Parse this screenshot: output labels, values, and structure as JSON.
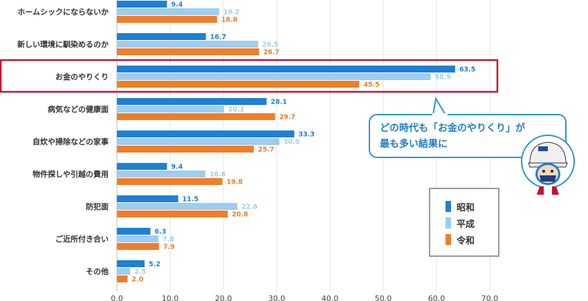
{
  "chart_data": {
    "type": "bar",
    "orientation": "horizontal",
    "categories": [
      "ホームシックにならないか",
      "新しい環境に馴染めるのか",
      "お金のやりくり",
      "病気などの健康面",
      "自炊や掃除などの家事",
      "物件探しや引越の費用",
      "防犯面",
      "ご近所付き合い",
      "その他"
    ],
    "series": [
      {
        "name": "昭和",
        "color": "#1e7fd4",
        "values": [
          9.4,
          16.7,
          63.5,
          28.1,
          33.3,
          9.4,
          11.5,
          6.3,
          5.2
        ],
        "labels": [
          "9.4",
          "16.7",
          "63.5",
          "28.1",
          "33.3",
          "9.4",
          "11.5",
          "6.3",
          "5.2"
        ]
      },
      {
        "name": "平成",
        "color": "#9dcdf0",
        "values": [
          19.2,
          26.5,
          58.9,
          20.1,
          30.5,
          16.6,
          22.6,
          7.8,
          2.5
        ],
        "labels": [
          "19.2",
          "26.5",
          "58.9",
          "20.1",
          "30.5",
          "16.6",
          "22.6",
          "7.8",
          "2.5"
        ]
      },
      {
        "name": "令和",
        "color": "#ef7e2a",
        "values": [
          18.8,
          26.7,
          45.5,
          29.7,
          25.7,
          19.8,
          20.8,
          7.9,
          2.0
        ],
        "labels": [
          "18.8",
          "26.7",
          "45.5",
          "29.7",
          "25.7",
          "19.8",
          "20.8",
          "7.9",
          "2.0"
        ]
      }
    ],
    "xlim": [
      0,
      70
    ],
    "xticks": [
      "0.0",
      "10.0",
      "20.0",
      "30.0",
      "40.0",
      "50.0",
      "60.0",
      "70.0"
    ],
    "grid": true,
    "highlight_category": "お金のやりくり",
    "highlight_color": "#c8102e",
    "legend_placement": "bottom-right"
  },
  "callout": {
    "line1": "どの時代も「お金のやりくり」が",
    "line2": "最も多い結果に",
    "color": "#2a93d5"
  },
  "legend": {
    "items": [
      {
        "name": "昭和",
        "color": "#1e7fd4"
      },
      {
        "name": "平成",
        "color": "#9dcdf0"
      },
      {
        "name": "令和",
        "color": "#ef7e2a"
      }
    ]
  }
}
